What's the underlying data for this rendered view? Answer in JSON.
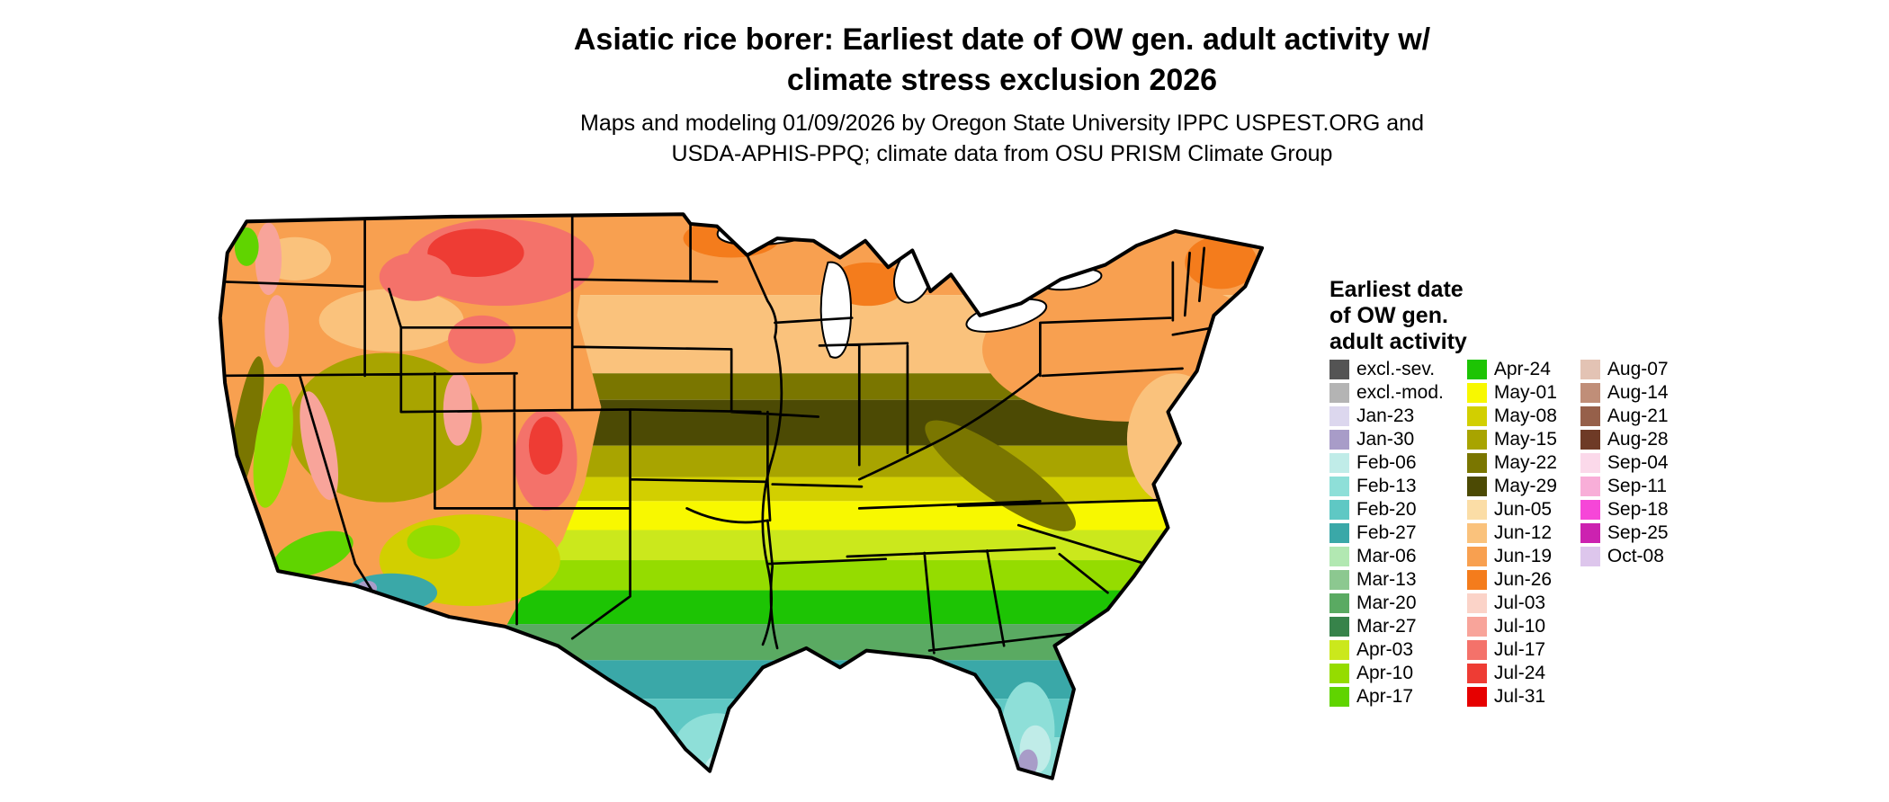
{
  "header": {
    "title_line1": "Asiatic rice borer: Earliest date of OW gen. adult activity w/",
    "title_line2": "climate stress exclusion 2026",
    "subtitle_line1": "Maps and modeling 01/09/2026 by Oregon State University IPPC USPEST.ORG and",
    "subtitle_line2": "USDA-APHIS-PPQ; climate data from OSU PRISM Climate Group"
  },
  "legend": {
    "title_lines": [
      "Earliest date",
      "of OW gen.",
      "adult activity"
    ],
    "columns": [
      {
        "entries": [
          {
            "label": "excl.-sev.",
            "color": "#545454"
          },
          {
            "label": "excl.-mod.",
            "color": "#b4b4b4"
          },
          {
            "label": "Jan-23",
            "color": "#dcd7ee"
          },
          {
            "label": "Jan-30",
            "color": "#a89cc8"
          },
          {
            "label": "Feb-06",
            "color": "#c0ece8"
          },
          {
            "label": "Feb-13",
            "color": "#8edfd8"
          },
          {
            "label": "Feb-20",
            "color": "#5fc8c4"
          },
          {
            "label": "Feb-27",
            "color": "#3aa8a8"
          },
          {
            "label": "Mar-06",
            "color": "#b2e8b2"
          },
          {
            "label": "Mar-13",
            "color": "#8cc890"
          },
          {
            "label": "Mar-20",
            "color": "#5aaa62"
          },
          {
            "label": "Mar-27",
            "color": "#37834a"
          },
          {
            "label": "Apr-03",
            "color": "#cbe81c"
          },
          {
            "label": "Apr-10",
            "color": "#95dc00"
          },
          {
            "label": "Apr-17",
            "color": "#60d400"
          }
        ]
      },
      {
        "entries": [
          {
            "label": "Apr-24",
            "color": "#1dc404"
          },
          {
            "label": "May-01",
            "color": "#f8f800"
          },
          {
            "label": "May-08",
            "color": "#d2cf00"
          },
          {
            "label": "May-15",
            "color": "#a8a400"
          },
          {
            "label": "May-22",
            "color": "#7a7600"
          },
          {
            "label": "May-29",
            "color": "#4c4a04"
          },
          {
            "label": "Jun-05",
            "color": "#fbdda6"
          },
          {
            "label": "Jun-12",
            "color": "#fac27c"
          },
          {
            "label": "Jun-19",
            "color": "#f8a050"
          },
          {
            "label": "Jun-26",
            "color": "#f47c1c"
          },
          {
            "label": "Jul-03",
            "color": "#fbd3c8"
          },
          {
            "label": "Jul-10",
            "color": "#f8a49a"
          },
          {
            "label": "Jul-17",
            "color": "#f4726a"
          },
          {
            "label": "Jul-24",
            "color": "#ee3c34"
          },
          {
            "label": "Jul-31",
            "color": "#e60000"
          }
        ]
      },
      {
        "entries": [
          {
            "label": "Aug-07",
            "color": "#e3c3b4"
          },
          {
            "label": "Aug-14",
            "color": "#c08e78"
          },
          {
            "label": "Aug-21",
            "color": "#96604a"
          },
          {
            "label": "Aug-28",
            "color": "#6e3a26"
          },
          {
            "label": "Sep-04",
            "color": "#fbd9ea"
          },
          {
            "label": "Sep-11",
            "color": "#f8aed8"
          },
          {
            "label": "Sep-18",
            "color": "#f646d8"
          },
          {
            "label": "Sep-25",
            "color": "#cc22b0"
          },
          {
            "label": "Oct-08",
            "color": "#ddc6ec"
          }
        ]
      }
    ]
  }
}
